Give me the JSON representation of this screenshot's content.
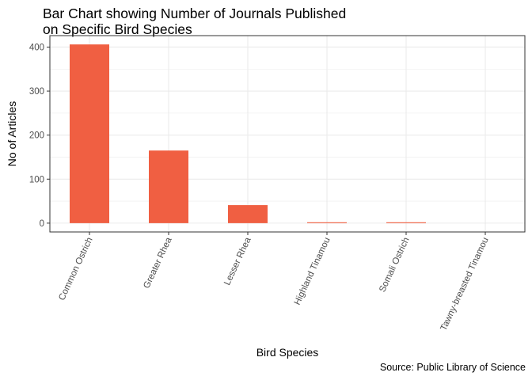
{
  "chart_data": {
    "type": "bar",
    "title": "Bar Chart showing Number of Journals Published\non Specific Bird Species",
    "xlabel": "Bird Species",
    "ylabel": "No of Articles",
    "caption": "Source: Public Library of Science",
    "categories": [
      "Common Ostrich",
      "Greater Rhea",
      "Lesser Rhea",
      "Highland Tinamou",
      "Somali Ostrich",
      "Tawny-breasted Tinamou"
    ],
    "values": [
      406,
      165,
      41,
      2,
      2,
      0
    ],
    "ylim": [
      -20,
      426
    ],
    "yticks": [
      0,
      100,
      200,
      300,
      400
    ],
    "ytick_labels": [
      "0",
      "100",
      "200",
      "300",
      "400"
    ],
    "grid": true,
    "legend": "none",
    "bar_color": "#f05f42",
    "grid_color": "#ebebeb",
    "axis_color": "#333333",
    "x_label_rotation_deg": -65
  }
}
